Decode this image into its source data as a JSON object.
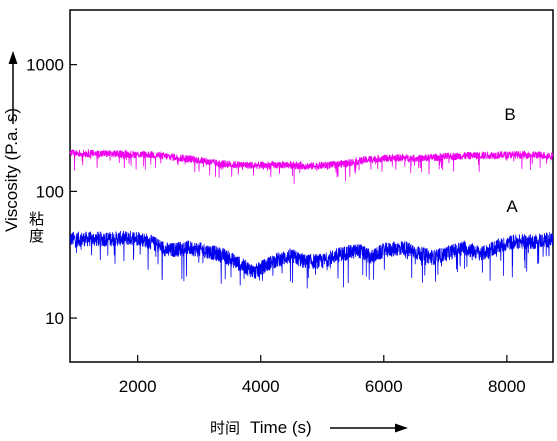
{
  "chart_data": {
    "type": "line",
    "ylabel": "Viscosity (P.a. s)",
    "ylabel_cn": "粘度",
    "xlabel": "Time (s)",
    "xlabel_cn": "时间",
    "xlim": [
      900,
      8750
    ],
    "ylim": [
      4.5,
      2700
    ],
    "y_scale": "log",
    "grid": false,
    "x_ticks": [
      {
        "value": 2000,
        "label": "2000"
      },
      {
        "value": 4000,
        "label": "4000"
      },
      {
        "value": 6000,
        "label": "6000"
      },
      {
        "value": 8000,
        "label": "8000"
      }
    ],
    "y_ticks": [
      {
        "value": 10,
        "label": "10"
      },
      {
        "value": 100,
        "label": "100"
      },
      {
        "value": 1000,
        "label": "1000"
      }
    ],
    "series": [
      {
        "name": "A",
        "color": "#0000ee",
        "noise": 0.06,
        "x": [
          900,
          1500,
          2000,
          2200,
          2500,
          2800,
          3100,
          3400,
          3700,
          3900,
          4200,
          4500,
          4700,
          5000,
          5300,
          5600,
          5800,
          6000,
          6300,
          6600,
          6800,
          7000,
          7300,
          7600,
          7800,
          8100,
          8400,
          8750
        ],
        "values": [
          42,
          42,
          43,
          40,
          34,
          36,
          34,
          31,
          26,
          23,
          28,
          31,
          28,
          28,
          32,
          34,
          30,
          34,
          36,
          32,
          30,
          32,
          36,
          32,
          36,
          40,
          40,
          42
        ]
      },
      {
        "name": "B",
        "color": "#ee00ee",
        "noise": 0.03,
        "x": [
          900,
          1500,
          2200,
          2600,
          3000,
          3300,
          3600,
          4000,
          4400,
          4800,
          5200,
          5500,
          5800,
          6200,
          6600,
          7000,
          7500,
          8000,
          8500,
          8750
        ],
        "values": [
          200,
          198,
          195,
          186,
          176,
          166,
          162,
          160,
          162,
          158,
          162,
          170,
          180,
          184,
          182,
          188,
          192,
          194,
          194,
          190
        ]
      }
    ],
    "annotations": [
      "B",
      "A"
    ]
  }
}
